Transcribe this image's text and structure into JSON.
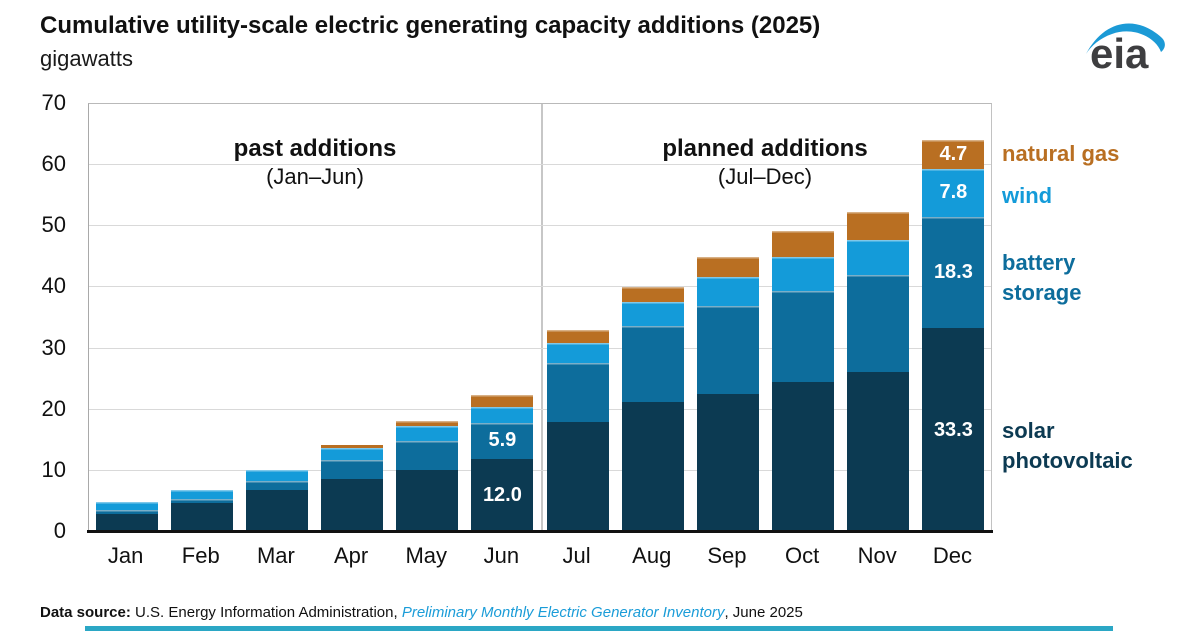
{
  "header": {
    "title": "Cumulative utility-scale electric generating capacity additions (2025)",
    "subtitle": "gigawatts"
  },
  "logo": {
    "text": "eia",
    "swoosh_color": "#1b9ad6",
    "text_color": "#3e3e40"
  },
  "chart_data": {
    "type": "bar",
    "stacked": true,
    "title": "Cumulative utility-scale electric generating capacity additions (2025)",
    "ylabel": "gigawatts",
    "ylim": [
      0,
      70
    ],
    "yticks": [
      0,
      10,
      20,
      30,
      40,
      50,
      60,
      70
    ],
    "grid": true,
    "legend_position": "right",
    "categories": [
      "Jan",
      "Feb",
      "Mar",
      "Apr",
      "May",
      "Jun",
      "Jul",
      "Aug",
      "Sep",
      "Oct",
      "Nov",
      "Dec"
    ],
    "series": [
      {
        "name": "solar photovoltaic",
        "color": "#0c3a52",
        "values": [
          3.0,
          4.8,
          6.8,
          8.7,
          10.2,
          12.0,
          18.0,
          21.2,
          22.6,
          24.5,
          26.2,
          33.3
        ],
        "value_labels": [
          "",
          "",
          "",
          "",
          "",
          "12.0",
          "",
          "",
          "",
          "",
          "",
          "33.3"
        ]
      },
      {
        "name": "battery storage",
        "color": "#0d6d9c",
        "values": [
          0.6,
          0.6,
          1.6,
          3.1,
          4.7,
          5.9,
          9.6,
          12.5,
          14.4,
          15.0,
          15.9,
          18.3
        ],
        "value_labels": [
          "",
          "",
          "",
          "",
          "",
          "5.9",
          "",
          "",
          "",
          "",
          "",
          "18.3"
        ]
      },
      {
        "name": "wind",
        "color": "#149bd9",
        "values": [
          1.3,
          1.4,
          1.8,
          2.0,
          2.4,
          2.6,
          3.3,
          4.0,
          4.7,
          5.4,
          5.6,
          7.8
        ],
        "value_labels": [
          "",
          "",
          "",
          "",
          "",
          "",
          "",
          "",
          "",
          "",
          "",
          "7.8"
        ]
      },
      {
        "name": "natural gas",
        "color": "#b96f22",
        "values": [
          0,
          0,
          0,
          0.4,
          0.8,
          1.9,
          2.2,
          2.4,
          3.3,
          4.4,
          4.6,
          4.7
        ],
        "value_labels": [
          "",
          "",
          "",
          "",
          "",
          "",
          "",
          "",
          "",
          "",
          "",
          "4.7"
        ]
      }
    ],
    "annotations": [
      {
        "title": "past additions",
        "sub": "(Jan–Jun)",
        "range": "Jan-Jun"
      },
      {
        "title": "planned additions",
        "sub": "(Jul–Dec)",
        "range": "Jul-Dec"
      }
    ],
    "legend": [
      {
        "label": "natural gas",
        "color": "#b96f22"
      },
      {
        "label": "wind",
        "color": "#149bd9"
      },
      {
        "label": "battery\nstorage",
        "color": "#0d6d9c"
      },
      {
        "label": "solar\nphotovoltaic",
        "color": "#0c3a52"
      }
    ]
  },
  "footer": {
    "source_label": "Data source: ",
    "source_text": "U.S. Energy Information Administration, ",
    "source_link": "Preliminary Monthly Electric Generator Inventory",
    "source_suffix": ", June 2025",
    "accent_bar_color": "#2ba7c5"
  }
}
